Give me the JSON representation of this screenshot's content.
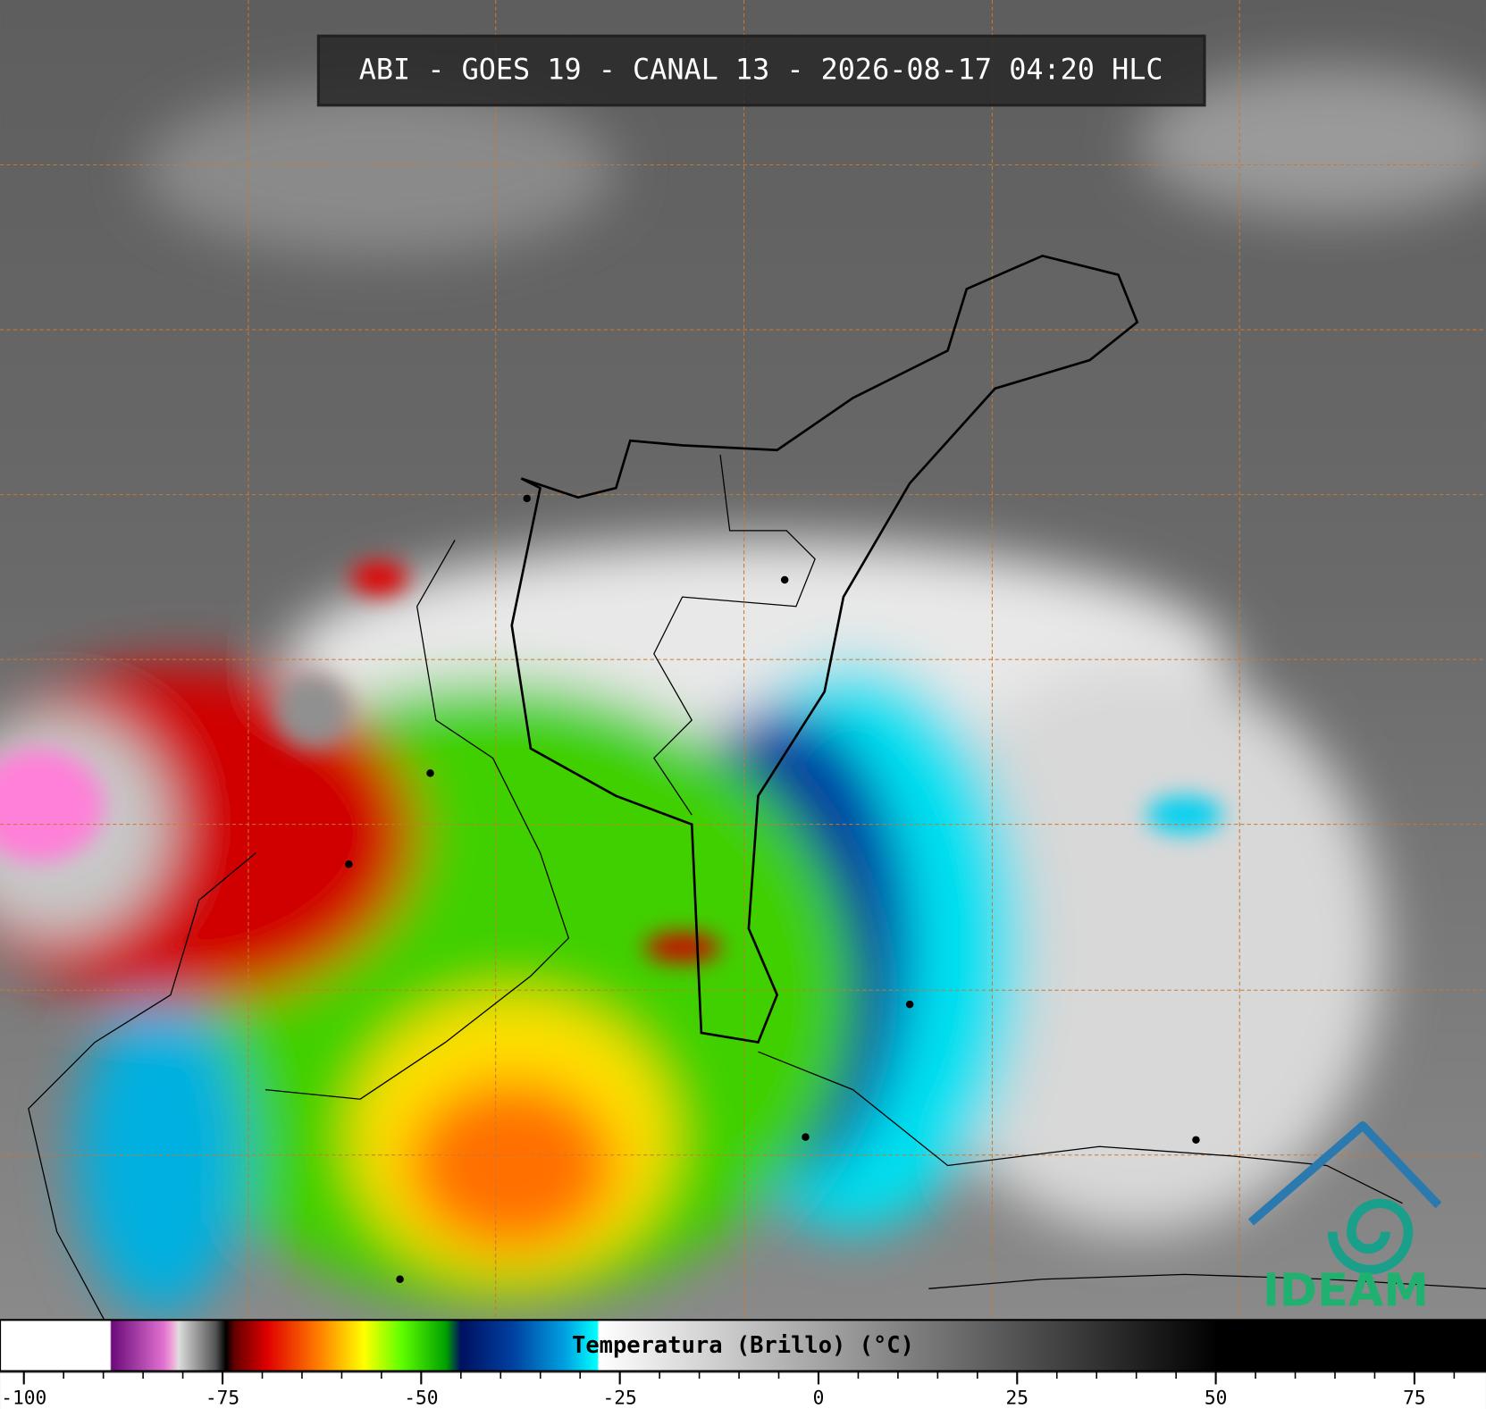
{
  "header": {
    "title": "ABI - GOES 19 - CANAL 13 - 2026-08-17 04:20 HLC"
  },
  "colorbar": {
    "label": "Temperatura (Brillo) (°C)",
    "lim": [
      -103,
      84
    ],
    "ticks": [
      -100,
      -75,
      -50,
      -25,
      0,
      25,
      50,
      75
    ],
    "minor_ticks": [
      -95,
      -90,
      -85,
      -80,
      -70,
      -65,
      -60,
      -55,
      -45,
      -40,
      -35,
      -30,
      -20,
      -15,
      -10,
      -5,
      5,
      10,
      15,
      20,
      30,
      35,
      40,
      45,
      55,
      60,
      65,
      70,
      80
    ]
  },
  "logo": {
    "text": "IDEAM"
  }
}
